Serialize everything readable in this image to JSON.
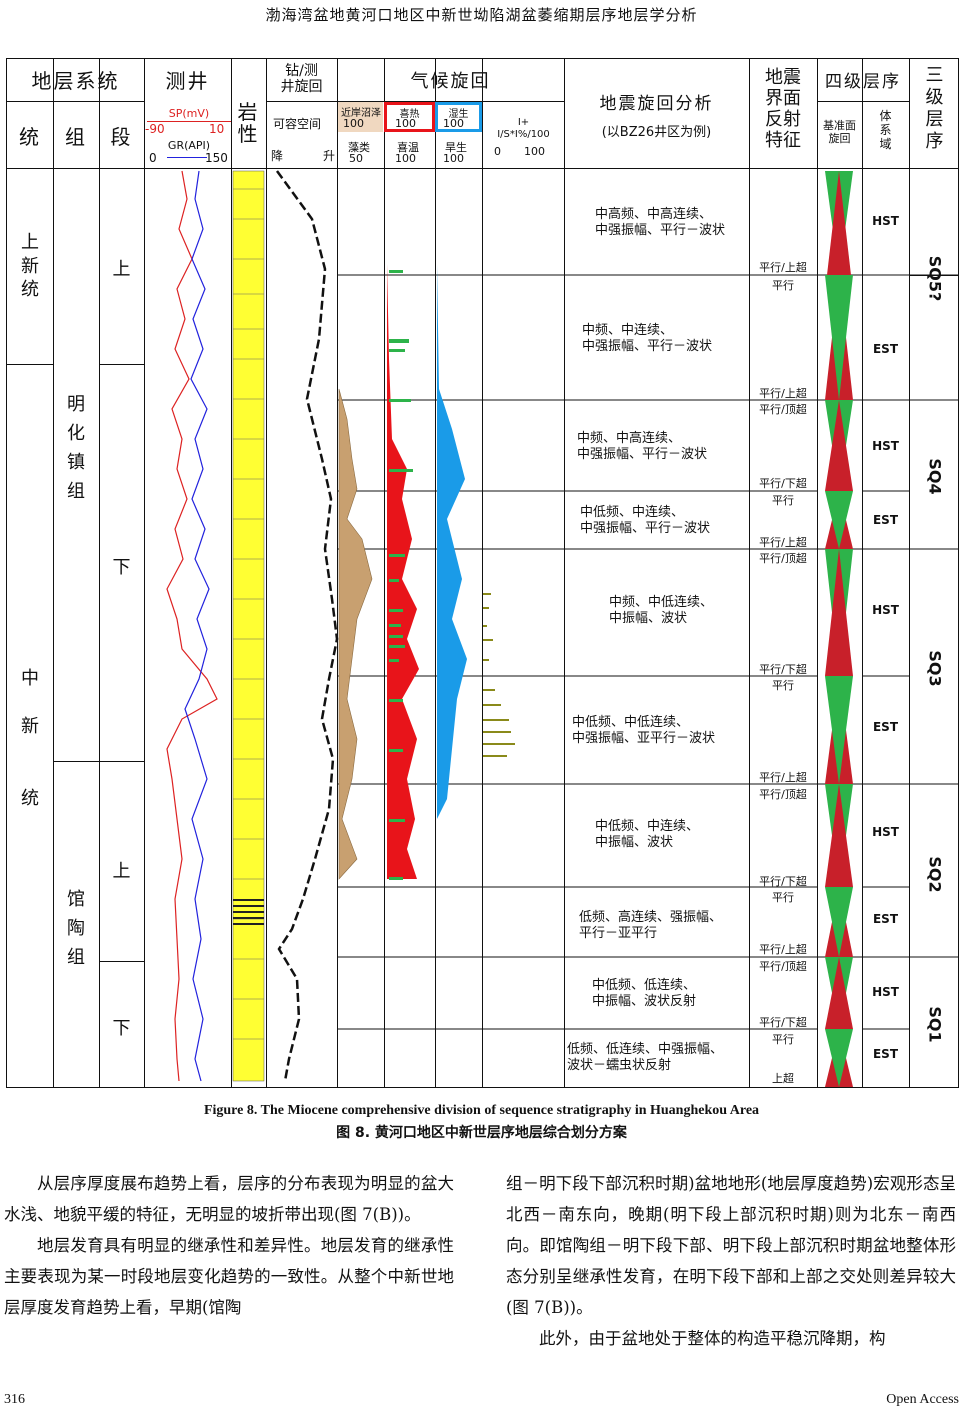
{
  "header": {
    "running_title": "渤海湾盆地黄河口地区中新世坳陷湖盆萎缩期层序地层学分析"
  },
  "figure": {
    "headers": {
      "strat_system": "地层系统",
      "tong": "统",
      "zu": "组",
      "duan": "段",
      "well_log": "测井",
      "sp_label": "SP(mV)",
      "sp_min": "-90",
      "sp_max": "10",
      "gr_label": "GR(API)",
      "gr_min": "0",
      "gr_max": "150",
      "lithology": "岩性",
      "drill_cycle": "钻/测\n井旋回",
      "accommodation": "可容空间",
      "fall": "降",
      "rise": "升",
      "climate_cycle": "气候旋回",
      "coastal_swamp": "近岸沼泽",
      "coastal_swamp_val": "100",
      "algae": "藻类",
      "algae_val": "50",
      "hot": "喜热",
      "hot_val": "100",
      "warm": "喜温",
      "warm_val": "100",
      "wet": "湿生",
      "wet_val": "100",
      "dry": "旱生",
      "dry_val": "100",
      "is_label": "I+\nI/S*I%/100",
      "is_min": "0",
      "is_max": "100",
      "seismic_cycle": "地震旋回分析",
      "seismic_example": "(以BZ26井区为例)",
      "seismic_interface": "地震\n界面\n反射\n特征",
      "fourth_order": "四级层序",
      "base_cycle": "基准面\n旋回",
      "systems_tract": "体\n系\n域",
      "third_order": "三\n级\n层\n序"
    },
    "tong_units": [
      {
        "label": "上\n新\n统"
      },
      {
        "label": "中\n\n新\n\n\n统"
      }
    ],
    "zu_units": [
      {
        "label": "明\n\n化\n\n镇\n\n组"
      },
      {
        "label": "馆\n\n陶\n\n组"
      }
    ],
    "duan_units": [
      {
        "label": "上"
      },
      {
        "label": "下"
      },
      {
        "label": "上"
      },
      {
        "label": "下"
      }
    ],
    "seismic_rows": [
      {
        "text": "中高频、中高连续、\n中强振幅、平行－波状",
        "top": "",
        "bottom": "平行/上超",
        "tract": "HST"
      },
      {
        "text": "中频、中连续、\n中强振幅、平行－波状",
        "top": "平行",
        "bottom": "平行/上超",
        "tract": "EST"
      },
      {
        "text": "中频、中高连续、\n中强振幅、平行－波状",
        "top": "平行/顶超",
        "bottom": "平行/下超",
        "tract": "HST"
      },
      {
        "text": "中低频、中连续、\n中强振幅、平行－波状",
        "top": "平行",
        "bottom": "平行/上超",
        "tract": "EST"
      },
      {
        "text": "中频、中低连续、\n中振幅、波状",
        "top": "平行/顶超",
        "bottom": "平行/下超",
        "tract": "HST"
      },
      {
        "text": "中低频、中低连续、\n中强振幅、亚平行－波状",
        "top": "平行",
        "bottom": "平行/上超",
        "tract": "EST"
      },
      {
        "text": "中低频、中连续、\n中振幅、波状",
        "top": "平行/顶超",
        "bottom": "平行/下超",
        "tract": "HST"
      },
      {
        "text": "低频、高连续、强振幅、\n平行－亚平行",
        "top": "平行",
        "bottom": "平行/上超",
        "tract": "EST"
      },
      {
        "text": "中低频、低连续、\n中振幅、波状反射",
        "top": "平行/顶超",
        "bottom": "平行/下超",
        "tract": "HST"
      },
      {
        "text": "低频、低连续、中强振幅、\n波状－蠕虫状反射",
        "top": "平行",
        "bottom": "上超",
        "tract": "EST"
      }
    ],
    "sequences": [
      {
        "label": "SQ5?"
      },
      {
        "label": "SQ4"
      },
      {
        "label": "SQ3"
      },
      {
        "label": "SQ2"
      },
      {
        "label": "SQ1"
      }
    ],
    "colors": {
      "red": "#e8141a",
      "blue": "#1a9be8",
      "green": "#2db34a",
      "sand": "#c8a070",
      "yellow": "#ffff33",
      "olive": "#8a8a1a"
    }
  },
  "caption": {
    "en": "Figure 8. The Miocene comprehensive division of sequence stratigraphy in Huanghekou Area",
    "zh": "图 8.  黄河口地区中新世层序地层综合划分方案"
  },
  "body": {
    "left_p1": "从层序厚度展布趋势上看，层序的分布表现为明显的盆大水浅、地貌平缓的特征，无明显的坡折带出现(图 7(B))。",
    "left_p2": "地层发育具有明显的继承性和差异性。地层发育的继承性主要表现为某一时段地层变化趋势的一致性。从整个中新世地层厚度发育趋势上看，早期(馆陶",
    "right_p1": "组－明下段下部沉积时期)盆地地形(地层厚度趋势)宏观形态呈北西－南东向，晚期(明下段上部沉积时期)则为北东－南西向。即馆陶组－明下段下部、明下段上部沉积时期盆地整体形态分别呈继承性发育，在明下段下部和上部之交处则差异较大(图 7(B))。",
    "right_p2": "此外，由于盆地处于整体的构造平稳沉降期，构"
  },
  "footer": {
    "page": "316",
    "publisher": "Open Access"
  }
}
